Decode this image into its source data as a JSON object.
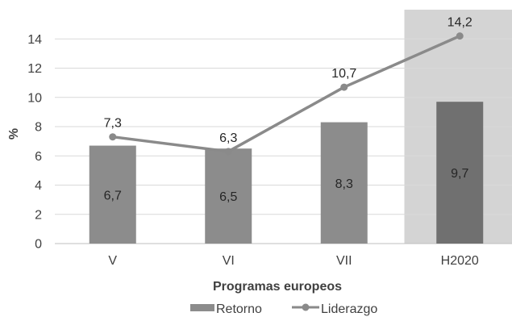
{
  "chart_data": {
    "type": "bar",
    "categories": [
      "V",
      "VI",
      "VII",
      "H2020"
    ],
    "series": [
      {
        "name": "Retorno",
        "type": "bar",
        "values": [
          6.7,
          6.5,
          8.3,
          9.7
        ],
        "value_labels": [
          "6,7",
          "6,5",
          "8,3",
          "9,7"
        ]
      },
      {
        "name": "Liderazgo",
        "type": "line",
        "values": [
          7.3,
          6.3,
          10.7,
          14.2
        ],
        "value_labels": [
          "7,3",
          "6,3",
          "10,7",
          "14,2"
        ]
      }
    ],
    "xlabel": "Programas europeos",
    "ylabel": "%",
    "ylim": [
      0,
      16
    ],
    "yticks": [
      0,
      2,
      4,
      6,
      8,
      10,
      12,
      14
    ],
    "grid": true,
    "legend_position": "bottom",
    "highlighted_category": "H2020",
    "colors": {
      "bar": "#8c8c8c",
      "bar_highlight": "#707070",
      "highlight_band": "#d4d4d4",
      "line": "#8a8a8a",
      "grid": "#d9d9d9",
      "text": "#404040",
      "bar_label": "#262626"
    }
  }
}
